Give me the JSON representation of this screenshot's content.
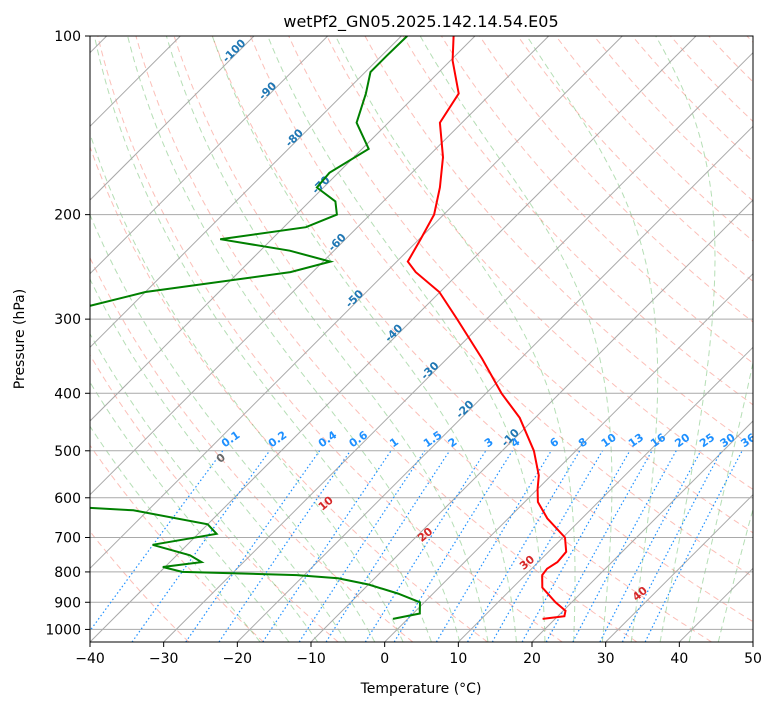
{
  "chart_data": {
    "type": "line",
    "subtype": "skew-t log-p diagram",
    "title": "wetPf2_GN05.2025.142.14.54.E05",
    "xlabel": "Temperature (°C)",
    "ylabel": "Pressure (hPa)",
    "xlim": [
      -40,
      50
    ],
    "ylim": [
      1050,
      100
    ],
    "y_scale": "log",
    "grid": true,
    "x_ticks": [
      -40,
      -30,
      -20,
      -10,
      0,
      10,
      20,
      30,
      40,
      50
    ],
    "x_tick_labels": [
      "−40",
      "−30",
      "−20",
      "−10",
      "0",
      "10",
      "20",
      "30",
      "40",
      "50"
    ],
    "y_ticks": [
      100,
      200,
      300,
      400,
      500,
      600,
      700,
      800,
      900,
      1000
    ],
    "y_tick_labels": [
      "100",
      "200",
      "300",
      "400",
      "500",
      "600",
      "700",
      "800",
      "900",
      "1000"
    ],
    "colors": {
      "temperature": "#ff0000",
      "dewpoint": "#008000",
      "isotherm": "#a9a9a9",
      "dry_adiabat": "#fa8072",
      "moist_adiabat": "#2ca02c",
      "mixing_ratio": "#1e90ff",
      "dry_adiabat_label": "#d62728",
      "isotherm_label": "#1f77b4",
      "mixing_ratio_label": "#1e90ff"
    },
    "series": [
      {
        "key": "temperature",
        "color": "#ff0000",
        "points": [
          {
            "p": 960,
            "t": 18.3
          },
          {
            "p": 950,
            "t": 20.9
          },
          {
            "p": 930,
            "t": 20.3
          },
          {
            "p": 900,
            "t": 17.8
          },
          {
            "p": 850,
            "t": 14.0
          },
          {
            "p": 810,
            "t": 12.3
          },
          {
            "p": 790,
            "t": 12.1
          },
          {
            "p": 770,
            "t": 12.6
          },
          {
            "p": 740,
            "t": 12.4
          },
          {
            "p": 700,
            "t": 10.3
          },
          {
            "p": 650,
            "t": 5.3
          },
          {
            "p": 610,
            "t": 1.8
          },
          {
            "p": 580,
            "t": 0.0
          },
          {
            "p": 550,
            "t": -1.7
          },
          {
            "p": 500,
            "t": -5.7
          },
          {
            "p": 440,
            "t": -12.1
          },
          {
            "p": 400,
            "t": -17.9
          },
          {
            "p": 350,
            "t": -25.2
          },
          {
            "p": 300,
            "t": -34.0
          },
          {
            "p": 270,
            "t": -40.1
          },
          {
            "p": 250,
            "t": -46.0
          },
          {
            "p": 240,
            "t": -48.5
          },
          {
            "p": 220,
            "t": -49.8
          },
          {
            "p": 200,
            "t": -51.3
          },
          {
            "p": 180,
            "t": -54.2
          },
          {
            "p": 160,
            "t": -57.9
          },
          {
            "p": 140,
            "t": -63.0
          },
          {
            "p": 125,
            "t": -64.4
          },
          {
            "p": 110,
            "t": -69.7
          },
          {
            "p": 100,
            "t": -72.9
          }
        ]
      },
      {
        "key": "dewpoint",
        "color": "#008000",
        "points": [
          {
            "p": 960,
            "t": -2.0
          },
          {
            "p": 940,
            "t": 0.9
          },
          {
            "p": 900,
            "t": -0.6
          },
          {
            "p": 870,
            "t": -4.8
          },
          {
            "p": 840,
            "t": -10.0
          },
          {
            "p": 820,
            "t": -15.0
          },
          {
            "p": 810,
            "t": -21.0
          },
          {
            "p": 800,
            "t": -37.0
          },
          {
            "p": 785,
            "t": -40.3
          },
          {
            "p": 770,
            "t": -35.7
          },
          {
            "p": 750,
            "t": -38.2
          },
          {
            "p": 720,
            "t": -44.7
          },
          {
            "p": 690,
            "t": -37.5
          },
          {
            "p": 665,
            "t": -40.0
          },
          {
            "p": 630,
            "t": -52.0
          },
          {
            "p": 605,
            "t": -79.0
          },
          {
            "p": 590,
            "t": -82.9
          },
          {
            "p": 500,
            "t": -92.0
          },
          {
            "p": 440,
            "t": -96.5
          },
          {
            "p": 400,
            "t": -99.5
          },
          {
            "p": 350,
            "t": -101.5
          },
          {
            "p": 320,
            "t": -100.5
          },
          {
            "p": 300,
            "t": -90.0
          },
          {
            "p": 290,
            "t": -87.5
          },
          {
            "p": 270,
            "t": -80.0
          },
          {
            "p": 250,
            "t": -63.0
          },
          {
            "p": 240,
            "t": -59.0
          },
          {
            "p": 230,
            "t": -66.0
          },
          {
            "p": 220,
            "t": -77.0
          },
          {
            "p": 210,
            "t": -67.0
          },
          {
            "p": 200,
            "t": -64.5
          },
          {
            "p": 190,
            "t": -66.5
          },
          {
            "p": 180,
            "t": -70.9
          },
          {
            "p": 170,
            "t": -71.2
          },
          {
            "p": 155,
            "t": -69.1
          },
          {
            "p": 140,
            "t": -74.3
          },
          {
            "p": 125,
            "t": -77.0
          },
          {
            "p": 115,
            "t": -79.3
          },
          {
            "p": 108,
            "t": -79.3
          },
          {
            "p": 100,
            "t": -79.2
          }
        ]
      }
    ],
    "isotherm_labels": [
      "-100",
      "-90",
      "-80",
      "-70",
      "-60",
      "-50",
      "-40",
      "-30",
      "-20",
      "-10"
    ],
    "isotherm_label_values": [
      -100,
      -90,
      -80,
      -70,
      -60,
      -50,
      -40,
      -30,
      -20,
      -10
    ],
    "dry_adiabat_labels": [
      "0",
      "10",
      "20",
      "30",
      "40"
    ],
    "dry_adiabat_label_values": [
      0,
      10,
      20,
      30,
      40
    ],
    "mixing_ratio_labels": [
      "0.1",
      "0.2",
      "0.4",
      "0.6",
      "1",
      "1.5",
      "2",
      "3",
      "4",
      "6",
      "8",
      "10",
      "13",
      "16",
      "20",
      "25",
      "30",
      "36"
    ],
    "mixing_ratio_values": [
      0.1,
      0.2,
      0.4,
      0.6,
      1,
      1.5,
      2,
      3,
      4,
      6,
      8,
      10,
      13,
      16,
      20,
      25,
      30,
      36
    ]
  }
}
